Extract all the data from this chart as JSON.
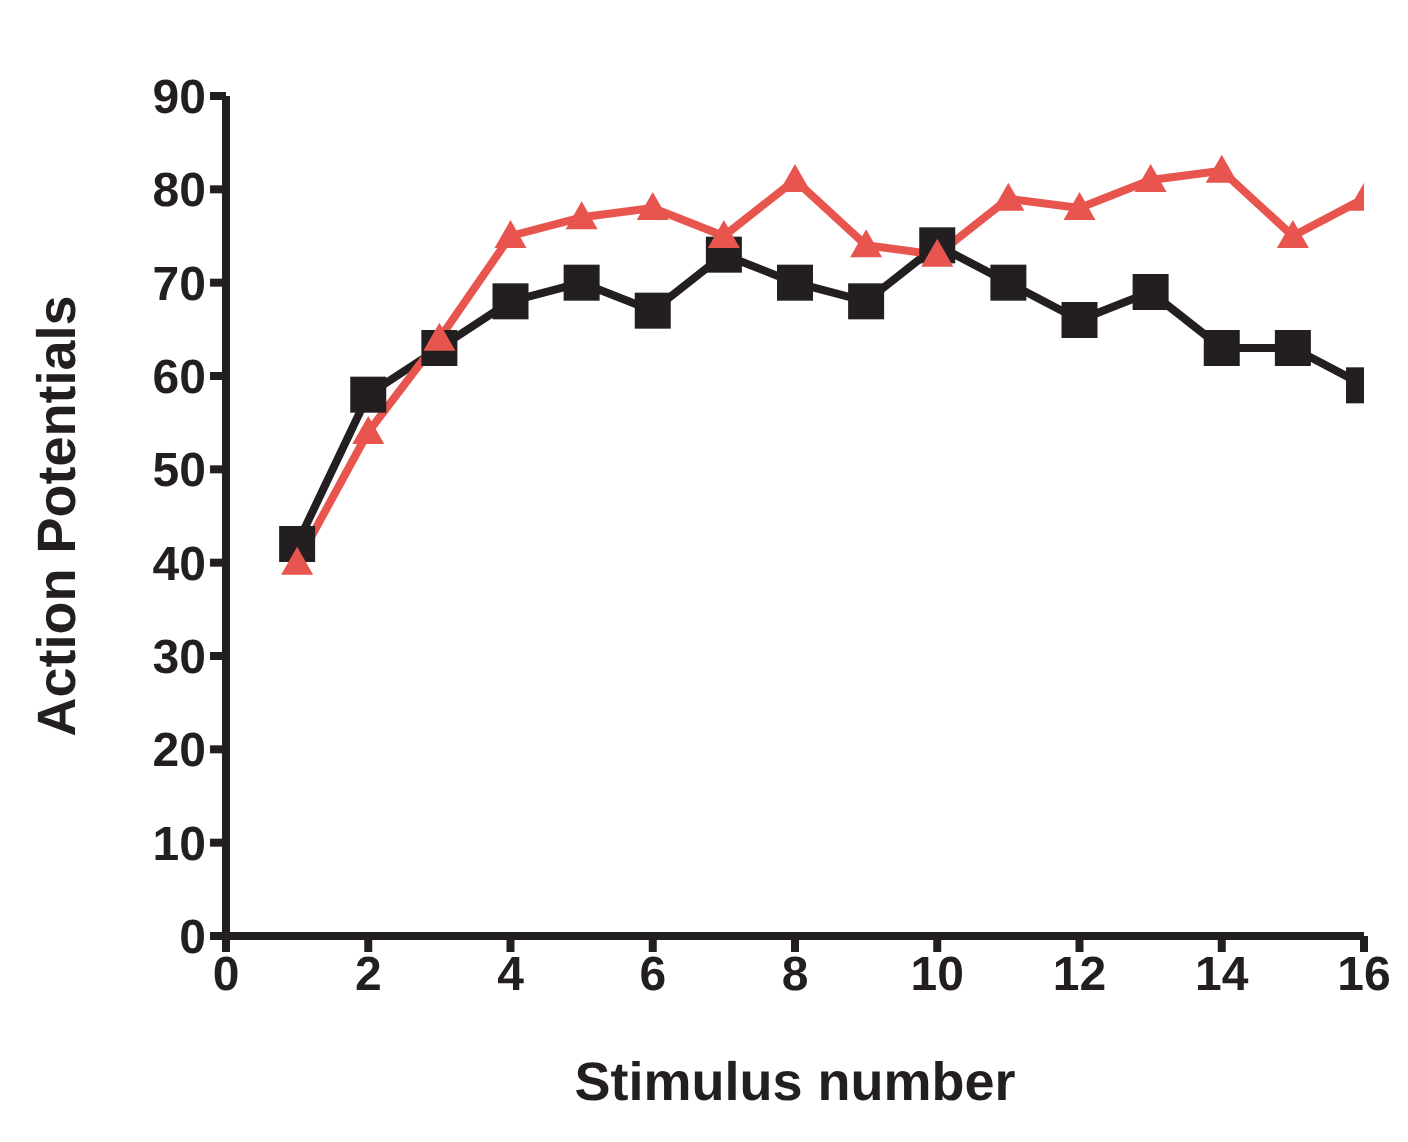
{
  "chart_data": {
    "type": "line",
    "xlabel": "Stimulus number",
    "ylabel": "Action Potentials",
    "x": [
      1,
      2,
      3,
      4,
      5,
      6,
      7,
      8,
      9,
      10,
      11,
      12,
      13,
      14,
      15,
      16
    ],
    "series": [
      {
        "color": "#231f20",
        "marker": "square",
        "values": [
          42,
          58,
          63,
          68,
          70,
          67,
          73,
          70,
          68,
          74,
          70,
          66,
          69,
          63,
          63,
          59
        ]
      },
      {
        "color": "#e8554e",
        "marker": "triangle",
        "values": [
          40,
          54,
          64,
          75,
          77,
          78,
          75,
          81,
          74,
          73,
          79,
          78,
          81,
          82,
          75,
          79
        ]
      }
    ],
    "xlim": [
      0,
      16
    ],
    "xticks": [
      0,
      2,
      4,
      6,
      8,
      10,
      12,
      14,
      16
    ],
    "ylim": [
      0,
      90
    ],
    "yticks": [
      0,
      10,
      20,
      30,
      40,
      50,
      60,
      70,
      80,
      90
    ],
    "grid": false,
    "legend": false
  }
}
